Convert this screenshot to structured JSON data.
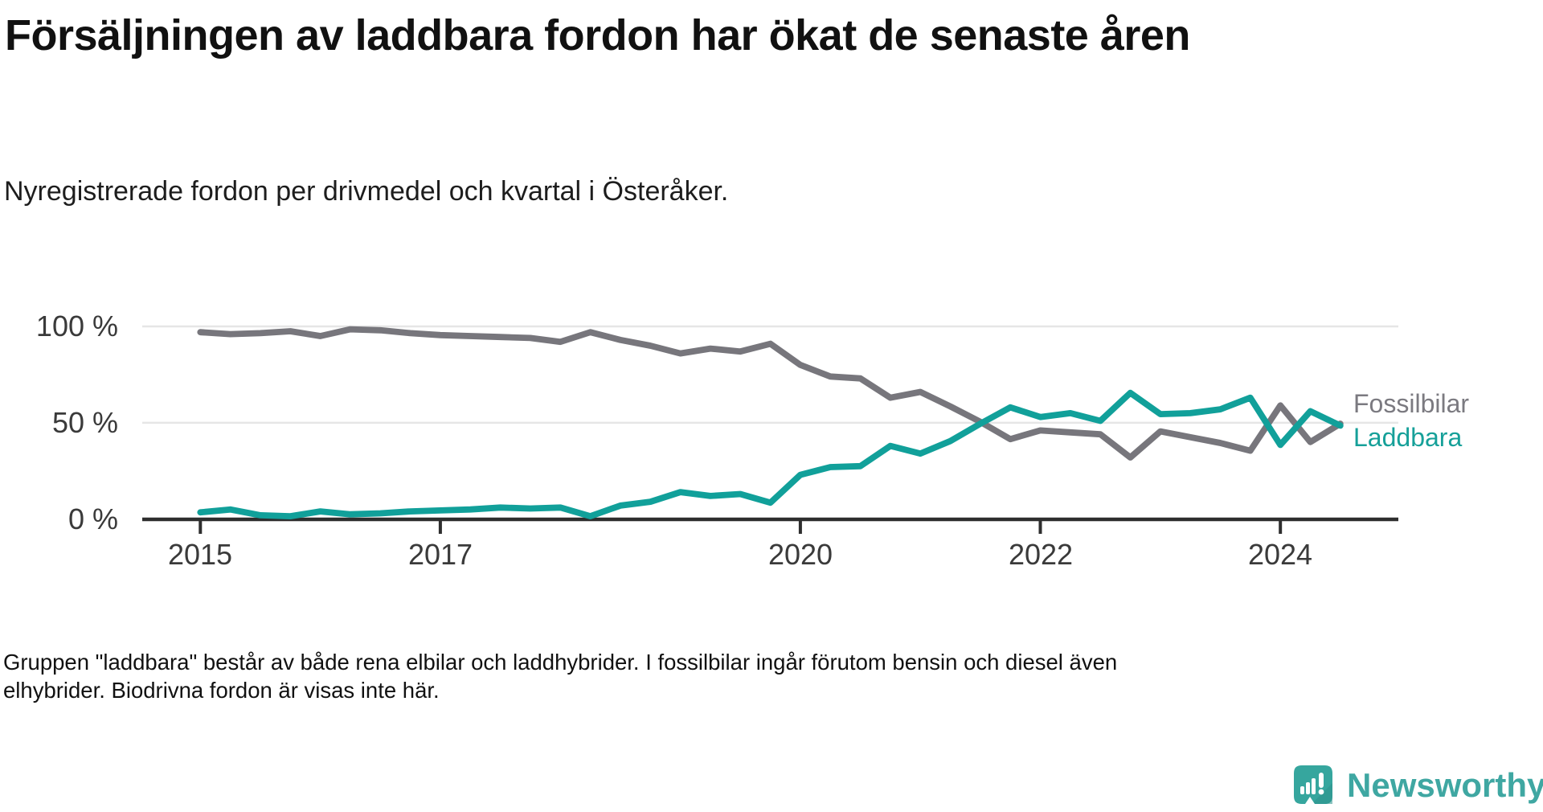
{
  "header": {
    "title": "Försäljningen av laddbara fordon har ökat de senaste åren",
    "subtitle": "Nyregistrerade fordon per drivmedel och kvartal i Österåker."
  },
  "chart_data": {
    "type": "line",
    "unit": "percent of newly registered vehicles",
    "grid": "horizontal",
    "ylim": [
      0,
      100
    ],
    "categories": [
      "2015Q1",
      "2015Q2",
      "2015Q3",
      "2015Q4",
      "2016Q1",
      "2016Q2",
      "2016Q3",
      "2016Q4",
      "2017Q1",
      "2017Q2",
      "2017Q3",
      "2017Q4",
      "2018Q1",
      "2018Q2",
      "2018Q3",
      "2018Q4",
      "2019Q1",
      "2019Q2",
      "2019Q3",
      "2019Q4",
      "2020Q1",
      "2020Q2",
      "2020Q3",
      "2020Q4",
      "2021Q1",
      "2021Q2",
      "2021Q3",
      "2021Q4",
      "2022Q1",
      "2022Q2",
      "2022Q3",
      "2022Q4",
      "2023Q1",
      "2023Q2",
      "2023Q3",
      "2023Q4",
      "2024Q1",
      "2024Q2",
      "2024Q3"
    ],
    "series": [
      {
        "name": "Fossilbilar",
        "color": "#77767c",
        "values": [
          97,
          96,
          96.5,
          97.5,
          95,
          98.5,
          98,
          96.5,
          95.5,
          95,
          94.5,
          94,
          92,
          97,
          93,
          90,
          86,
          88.5,
          87,
          91,
          80,
          74,
          73,
          63,
          66,
          58.5,
          50.5,
          41.5,
          46,
          45,
          44,
          32,
          45.5,
          42.5,
          39.5,
          35.5,
          59,
          40,
          49.5
        ]
      },
      {
        "name": "Laddbara",
        "color": "#11a09a",
        "values": [
          3.5,
          5,
          2,
          1.5,
          4,
          2.5,
          3,
          4,
          4.5,
          5,
          6,
          5.5,
          6,
          1.5,
          7,
          9,
          14,
          12,
          13,
          8.5,
          23,
          27,
          27.5,
          38,
          34,
          40.5,
          49.5,
          58,
          53,
          55,
          51,
          65.5,
          54.5,
          55,
          57,
          63,
          38.5,
          56,
          48.5
        ]
      }
    ],
    "yticks": [
      {
        "value": 100,
        "label": "100 %"
      },
      {
        "value": 50,
        "label": "50 %"
      },
      {
        "value": 0,
        "label": "0 %"
      }
    ],
    "xticks": [
      {
        "index": 0,
        "label": "2015"
      },
      {
        "index": 8,
        "label": "2017"
      },
      {
        "index": 20,
        "label": "2020"
      },
      {
        "index": 28,
        "label": "2022"
      },
      {
        "index": 36,
        "label": "2024"
      }
    ],
    "legend_position": "right-of-line-ends",
    "legend": [
      {
        "label": "Fossilbilar",
        "color": "#7b7a80"
      },
      {
        "label": "Laddbara",
        "color": "#16a099"
      }
    ],
    "title": "Försäljningen av laddbara fordon har ökat de senaste åren",
    "xlabel": "",
    "ylabel": ""
  },
  "footer": {
    "note": "Gruppen \"laddbara\" består av både rena elbilar och laddhybrider. I fossilbilar ingår förutom bensin och diesel även elhybrider. Biodrivna fordon är visas inte här."
  },
  "logo": {
    "brand": "Newsworthy",
    "icon": "newsworthy-chart-badge-icon",
    "text_color": "#3fa7a2",
    "icon_color": "#36a69e"
  }
}
